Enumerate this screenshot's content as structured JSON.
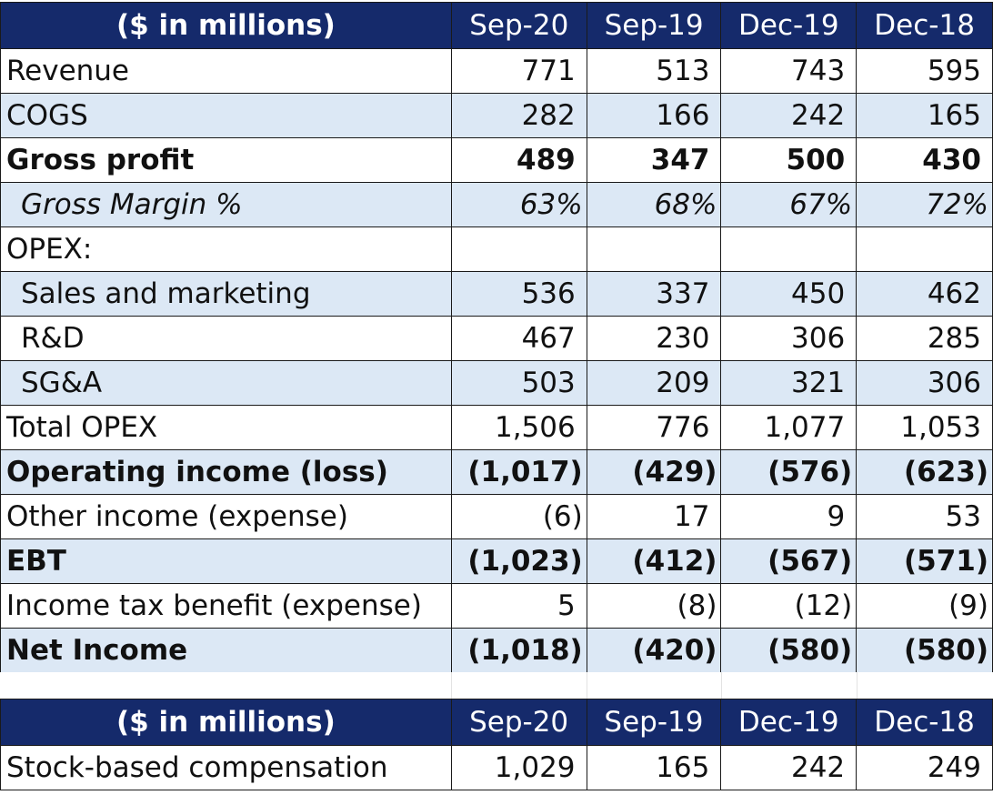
{
  "colors": {
    "header_bg": "#152a6b",
    "band_bg": "#dce8f5",
    "text": "#111111"
  },
  "table1": {
    "header": [
      "($ in millions)",
      "Sep-20",
      "Sep-19",
      "Dec-19",
      "Dec-18"
    ],
    "rows": [
      {
        "label": "Revenue",
        "values": [
          "771",
          "513",
          "743",
          "595"
        ]
      },
      {
        "label": "COGS",
        "values": [
          "282",
          "166",
          "242",
          "165"
        ]
      },
      {
        "label": "Gross profit",
        "values": [
          "489",
          "347",
          "500",
          "430"
        ]
      },
      {
        "label": "Gross Margin %",
        "values": [
          "63%",
          "68%",
          "67%",
          "72%"
        ]
      },
      {
        "label": "OPEX:",
        "values": [
          "",
          "",
          "",
          ""
        ]
      },
      {
        "label": "Sales and marketing",
        "values": [
          "536",
          "337",
          "450",
          "462"
        ]
      },
      {
        "label": "R&D",
        "values": [
          "467",
          "230",
          "306",
          "285"
        ]
      },
      {
        "label": "SG&A",
        "values": [
          "503",
          "209",
          "321",
          "306"
        ]
      },
      {
        "label": "Total OPEX",
        "values": [
          "1,506",
          "776",
          "1,077",
          "1,053"
        ]
      },
      {
        "label": "Operating income (loss)",
        "values": [
          "(1,017)",
          "(429)",
          "(576)",
          "(623)"
        ]
      },
      {
        "label": "Other income (expense)",
        "values": [
          "(6)",
          "17",
          "9",
          "53"
        ]
      },
      {
        "label": "EBT",
        "values": [
          "(1,023)",
          "(412)",
          "(567)",
          "(571)"
        ]
      },
      {
        "label": "Income tax benefit (expense)",
        "values": [
          "5",
          "(8)",
          "(12)",
          "(9)"
        ]
      },
      {
        "label": "Net Income",
        "values": [
          "(1,018)",
          "(420)",
          "(580)",
          "(580)"
        ]
      }
    ]
  },
  "table2": {
    "header": [
      "($ in millions)",
      "Sep-20",
      "Sep-19",
      "Dec-19",
      "Dec-18"
    ],
    "rows": [
      {
        "label": "Stock-based compensation",
        "values": [
          "1,029",
          "165",
          "242",
          "249"
        ]
      }
    ]
  }
}
